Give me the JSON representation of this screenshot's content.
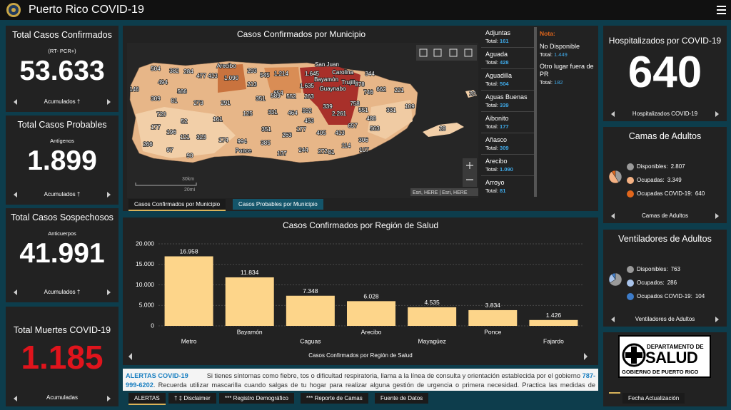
{
  "header": {
    "title": "Puerto Rico COVID-19"
  },
  "cards": [
    {
      "title": "Total Casos Confirmados",
      "subtitle": "(RT- PCR+)",
      "value": "53.633",
      "footer": "Acumulados †"
    },
    {
      "title": "Total Casos Probables",
      "subtitle": "Antígenos",
      "value": "1.899",
      "footer": "Acumulados †"
    },
    {
      "title": "Total Casos Sospechosos",
      "subtitle": "Anticuerpos",
      "value": "41.991",
      "footer": "Acumulados †"
    },
    {
      "title": "Total Muertes COVID-19",
      "value": "1.185",
      "footer": "Acumuladas"
    }
  ],
  "map": {
    "title": "Casos Confirmados por Municipio",
    "labels": [
      "504",
      "382",
      "284",
      "477",
      "413",
      "Arecibo",
      "1.090",
      "293",
      "545",
      "1.214",
      "1.645",
      "San Juan",
      "Carolina",
      "344",
      "Bayamón",
      "1.635",
      "Trujillo",
      "Guaynabo",
      "878",
      "746",
      "662",
      "221",
      "494",
      "566",
      "213",
      "654",
      "146",
      "309",
      "81",
      "273",
      "291",
      "351",
      "589",
      "552",
      "263",
      "551",
      "758",
      "109",
      "20",
      "720",
      "125",
      "331",
      "464",
      "592",
      "339",
      "2.261",
      "488",
      "331",
      "177",
      "52",
      "161",
      "453",
      "405",
      "657",
      "563",
      "196",
      "121",
      "323",
      "174",
      "994",
      "351",
      "263",
      "177",
      "413",
      "306",
      "266",
      "97",
      "90",
      "385",
      "Ponce",
      "137",
      "244",
      "272",
      "81",
      "114",
      "107",
      "28"
    ],
    "scale_km": "30km",
    "scale_mi": "20mi",
    "attribution": "Esri, HERE | Esri, HERE",
    "list": [
      {
        "name": "Adjuntas",
        "label": "Total:",
        "total": "161"
      },
      {
        "name": "Aguada",
        "label": "Total:",
        "total": "428"
      },
      {
        "name": "Aguadilla",
        "label": "Total:",
        "total": "504"
      },
      {
        "name": "Aguas Buenas",
        "label": "Total:",
        "total": "339"
      },
      {
        "name": "Aibonito",
        "label": "Total:",
        "total": "177"
      },
      {
        "name": "Añasco",
        "label": "Total:",
        "total": "309"
      },
      {
        "name": "Arecibo",
        "label": "Total:",
        "total": "1.090"
      },
      {
        "name": "Arroyo",
        "label": "Total:",
        "total": "81"
      }
    ],
    "note": {
      "title": "Nota:",
      "items": [
        {
          "name": "No Disponible",
          "label": "Total:",
          "total": "1.449"
        },
        {
          "name": "Otro lugar fuera de PR",
          "label": "Total:",
          "total": "182"
        }
      ]
    },
    "tabs": [
      "Casos Confirmados por Municipio",
      "Casos Probables por Municipio"
    ]
  },
  "chart_data": [
    {
      "type": "bar",
      "title": "Casos Confirmados por Región de Salud",
      "footer": "Casos Confirmados por Región de Salud",
      "categories": [
        "Metro",
        "Bayamón",
        "Caguas",
        "Arecibo",
        "Mayagüez",
        "Ponce",
        "Fajardo"
      ],
      "values": [
        16958,
        11834,
        7348,
        6028,
        4535,
        3834,
        1426
      ],
      "value_labels": [
        "16.958",
        "11.834",
        "7.348",
        "6.028",
        "4.535",
        "3.834",
        "1.426"
      ],
      "color": "#fdd58a",
      "ylim": [
        0,
        20000
      ],
      "yticks": [
        0,
        {
          "value": 5000,
          "label": "5.000"
        },
        {
          "value": 10000,
          "label": "10.000"
        },
        {
          "value": 15000,
          "label": "15.000"
        },
        {
          "value": 20000,
          "label": "20.000"
        }
      ],
      "grid": true
    },
    {
      "type": "pie",
      "title": "Camas de Adultos",
      "footer": "Camas de Adultos",
      "categories": [
        "Disponibles:",
        "Ocupadas:",
        "Ocupadas COVID-19:"
      ],
      "values": [
        2807,
        3349,
        640
      ],
      "value_labels": [
        "2.807",
        "3.349",
        "640"
      ],
      "colors": [
        "#9a9a9a",
        "#f4b183",
        "#e0661c"
      ]
    },
    {
      "type": "pie",
      "title": "Ventiladores de Adultos",
      "footer": "Ventiladores de Adultos",
      "categories": [
        "Disponibles:",
        "Ocupados:",
        "Ocupados COVID-19:"
      ],
      "values": [
        763,
        286,
        104
      ],
      "value_labels": [
        "763",
        "286",
        "104"
      ],
      "colors": [
        "#9a9a9a",
        "#a9c4eb",
        "#3d7cc9"
      ]
    }
  ],
  "hospital": {
    "title": "Hospitalizados por COVID-19",
    "value": "640",
    "footer": "Hospitalizados COVID-19"
  },
  "alerts": {
    "title": "ALERTAS COVID-19",
    "text1": "Si tienes síntomas como fiebre, tos o dificultad respiratoria, llama a la línea de consulta y orientación establecida por el gobierno",
    "phone": "787-999-6202",
    "text2": ". Recuerda utilizar mascarilla cuando salgas de tu hogar para realizar alguna gestión de urgencia o primera necesidad. Practica las medidas de prevención (lavado de manos, etiqueta al toser y no tocarte los ojos, nariz y boca) y respeta las normas de distanciamiento físico."
  },
  "bottom_tabs": [
    "ALERTAS",
    "† ‡ Disclaimer",
    "*** Registro Demográfico",
    "*** Reporte de Camas",
    "Fuente de Datos"
  ],
  "logo": {
    "line1": "DEPARTAMENTO DE",
    "line2": "SALUD",
    "line3": "GOBIERNO DE PUERTO RICO"
  },
  "update_button": "Fecha Actualización"
}
